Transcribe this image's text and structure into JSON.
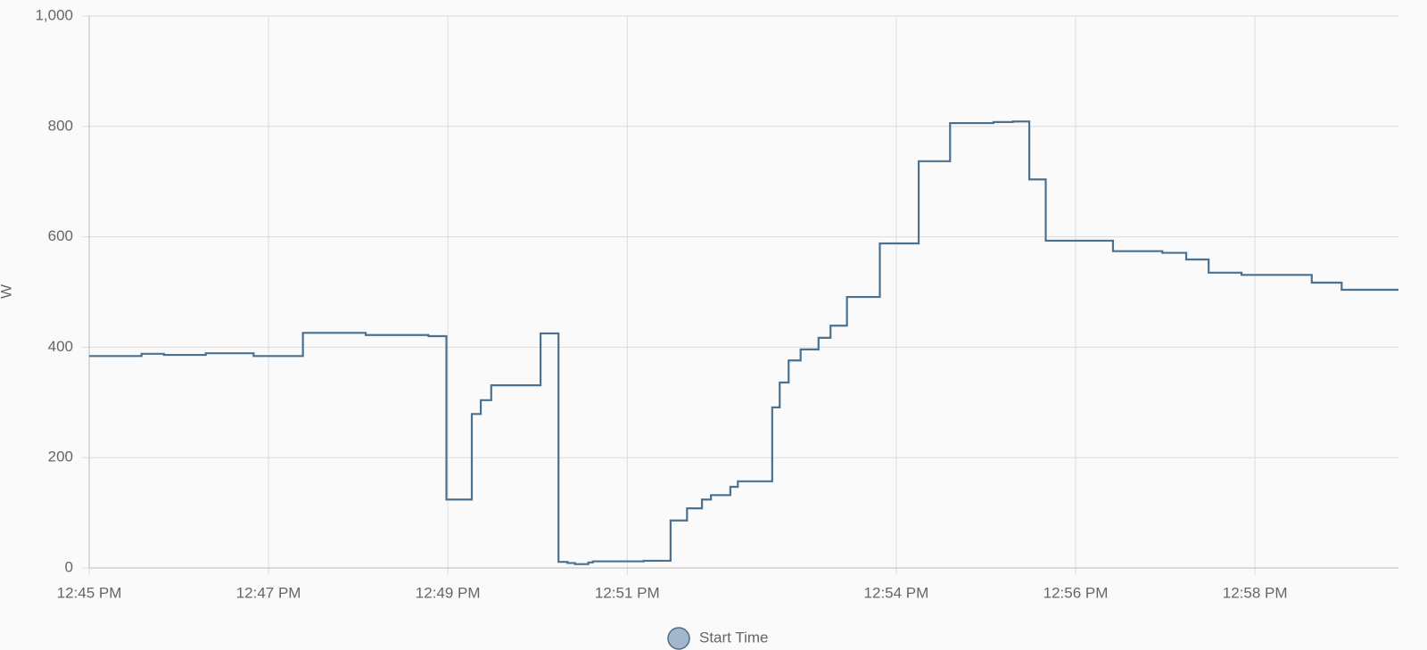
{
  "chart_data": {
    "type": "step",
    "y_label": "W",
    "legend": "Start Time",
    "color": "#4b7190",
    "legend_fill": "#a4b6c9",
    "grid": true,
    "ylim": [
      0,
      1000
    ],
    "yticks": [
      0,
      200,
      400,
      600,
      800,
      {
        "value": 1000,
        "label": "1,000"
      }
    ],
    "xlim": [
      "12:45:00",
      "12:59:36"
    ],
    "xticks": [
      {
        "value": "12:45:00",
        "label": "12:45 PM"
      },
      {
        "value": "12:47:00",
        "label": "12:47 PM"
      },
      {
        "value": "12:49:00",
        "label": "12:49 PM"
      },
      {
        "value": "12:51:00",
        "label": "12:51 PM"
      },
      {
        "value": "12:54:00",
        "label": "12:54 PM"
      },
      {
        "value": "12:56:00",
        "label": "12:56 PM"
      },
      {
        "value": "12:58:00",
        "label": "12:58 PM"
      }
    ],
    "x": [
      "12:45:00",
      "12:45:35",
      "12:45:50",
      "12:46:18",
      "12:46:50",
      "12:47:23",
      "12:48:05",
      "12:48:47",
      "12:48:59",
      "12:49:16",
      "12:49:22",
      "12:49:29",
      "12:50:02",
      "12:50:14",
      "12:50:20",
      "12:50:25",
      "12:50:34",
      "12:50:37",
      "12:51:11",
      "12:51:29",
      "12:51:40",
      "12:51:50",
      "12:51:56",
      "12:52:09",
      "12:52:14",
      "12:52:37",
      "12:52:42",
      "12:52:48",
      "12:52:56",
      "12:53:08",
      "12:53:16",
      "12:53:27",
      "12:53:49",
      "12:54:15",
      "12:54:36",
      "12:55:05",
      "12:55:18",
      "12:55:29",
      "12:55:40",
      "12:56:25",
      "12:56:58",
      "12:57:14",
      "12:57:29",
      "12:57:51",
      "12:58:38",
      "12:58:58"
    ],
    "values": [
      384,
      388,
      386,
      389,
      384,
      426,
      422,
      420,
      124,
      279,
      304,
      331,
      425,
      11,
      9,
      7,
      10,
      12,
      13,
      86,
      108,
      124,
      132,
      147,
      157,
      291,
      336,
      376,
      396,
      417,
      439,
      491,
      588,
      737,
      806,
      808,
      809,
      704,
      593,
      574,
      571,
      559,
      535,
      531,
      517,
      504
    ]
  }
}
